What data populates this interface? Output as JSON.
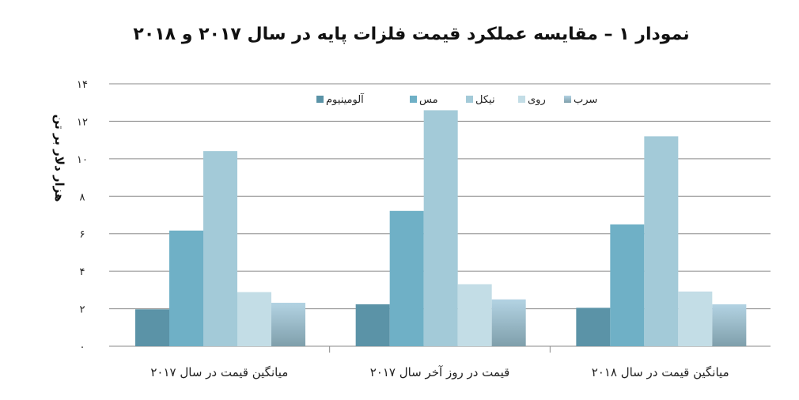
{
  "chart_data": {
    "type": "bar",
    "title": "نمودار ۱ – مقایسه عملکرد قیمت فلزات پایه در سال ۲۰۱۷ و  ۲۰۱۸",
    "ylabel": "هزار دلار بر تن",
    "xlabel": "",
    "ylim": [
      0,
      14
    ],
    "yticks": [
      0,
      2,
      4,
      6,
      8,
      10,
      12,
      14
    ],
    "ytick_labels": [
      "۰",
      "۲",
      "۴",
      "۶",
      "۸",
      "۱۰",
      "۱۲",
      "۱۴"
    ],
    "grid": true,
    "legend_position": "top",
    "categories": [
      "میانگین قیمت در سال ۲۰۱۷",
      "قیمت در روز آخر سال ۲۰۱۷",
      "میانگین قیمت در سال ۲۰۱۸"
    ],
    "series": [
      {
        "name": "آلومینیوم",
        "values": [
          1.97,
          2.24,
          2.05
        ],
        "color": "#5b93a7"
      },
      {
        "name": "مس",
        "values": [
          6.17,
          7.22,
          6.5
        ],
        "color": "#6fb0c6"
      },
      {
        "name": "نیکل",
        "values": [
          10.41,
          12.59,
          11.2
        ],
        "color": "#a3cad8"
      },
      {
        "name": "روی",
        "values": [
          2.89,
          3.31,
          2.92
        ],
        "color": "#c3dde6"
      },
      {
        "name": "سرب",
        "values": [
          2.32,
          2.5,
          2.24
        ],
        "color": "#a4c4d6"
      }
    ]
  }
}
